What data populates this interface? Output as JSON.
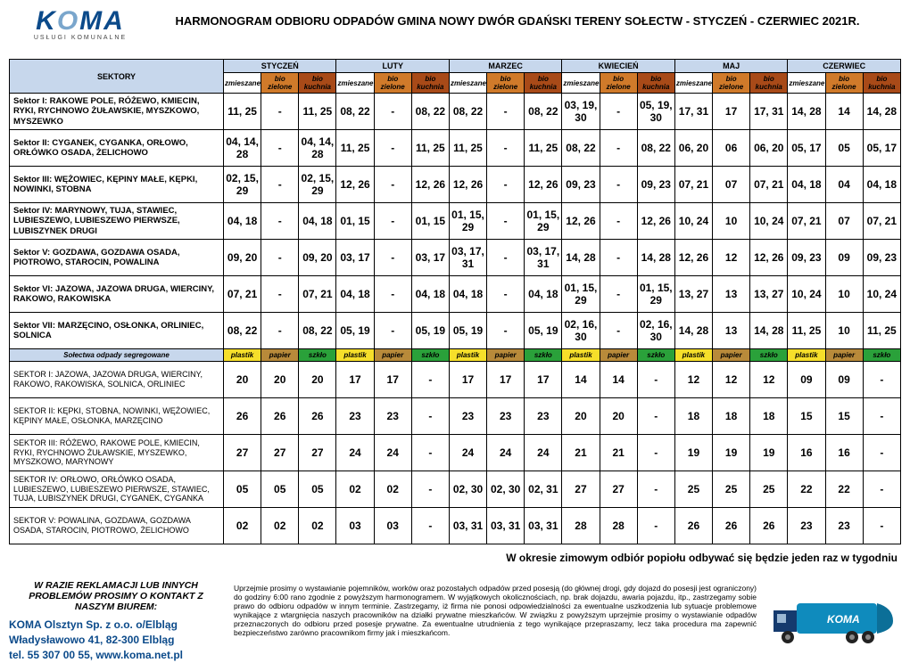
{
  "logo": {
    "text": "KOMA",
    "sub": "USŁUGI KOMUNALNE"
  },
  "title": "HARMONOGRAM ODBIORU ODPADÓW GMINA NOWY DWÓR GDAŃSKI TERENY SOŁECTW - STYCZEŃ - CZERWIEC 2021R.",
  "header": {
    "sektory": "SEKTORY",
    "months": [
      "STYCZEŃ",
      "LUTY",
      "MARZEC",
      "KWIECIEŃ",
      "MAJ",
      "CZERWIEC"
    ],
    "subs": [
      "zmieszane",
      "bio zielone",
      "bio kuchnia"
    ]
  },
  "rows1": [
    {
      "name": "Sektor I: RAKOWE POLE, RÓŻEWO, KMIECIN, RYKI, RYCHNOWO ŻUŁAWSKIE, MYSZKOWO, MYSZEWKO",
      "vals": [
        "11, 25",
        "-",
        "11, 25",
        "08, 22",
        "-",
        "08, 22",
        "08, 22",
        "-",
        "08, 22",
        "03, 19, 30",
        "-",
        "05, 19, 30",
        "17, 31",
        "17",
        "17, 31",
        "14, 28",
        "14",
        "14, 28"
      ]
    },
    {
      "name": "Sektor II: CYGANEK, CYGANKA, ORŁOWO, ORŁÓWKO OSADA, ŻELICHOWO",
      "vals": [
        "04, 14, 28",
        "-",
        "04, 14, 28",
        "11, 25",
        "-",
        "11, 25",
        "11, 25",
        "-",
        "11, 25",
        "08, 22",
        "-",
        "08, 22",
        "06, 20",
        "06",
        "06, 20",
        "05, 17",
        "05",
        "05, 17"
      ]
    },
    {
      "name": "Sektor III: WĘŻOWIEC, KĘPINY MAŁE, KĘPKI, NOWINKI, STOBNA",
      "vals": [
        "02, 15, 29",
        "-",
        "02, 15, 29",
        "12, 26",
        "-",
        "12, 26",
        "12, 26",
        "-",
        "12, 26",
        "09, 23",
        "-",
        "09, 23",
        "07, 21",
        "07",
        "07, 21",
        "04, 18",
        "04",
        "04, 18"
      ]
    },
    {
      "name": "Sektor IV: MARYNOWY, TUJA, STAWIEC, LUBIESZEWO, LUBIESZEWO PIERWSZE, LUBISZYNEK DRUGI",
      "vals": [
        "04, 18",
        "-",
        "04, 18",
        "01, 15",
        "-",
        "01, 15",
        "01, 15, 29",
        "-",
        "01, 15, 29",
        "12, 26",
        "-",
        "12, 26",
        "10, 24",
        "10",
        "10, 24",
        "07, 21",
        "07",
        "07, 21"
      ]
    },
    {
      "name": "Sektor V: GOZDAWA, GOZDAWA OSADA, PIOTROWO, STAROCIN, POWALINA",
      "vals": [
        "09, 20",
        "-",
        "09, 20",
        "03, 17",
        "-",
        "03, 17",
        "03, 17, 31",
        "-",
        "03, 17, 31",
        "14, 28",
        "-",
        "14, 28",
        "12, 26",
        "12",
        "12, 26",
        "09, 23",
        "09",
        "09, 23"
      ]
    },
    {
      "name": "Sektor VI: JAZOWA, JAZOWA DRUGA, WIERCINY, RAKOWO, RAKOWISKA",
      "vals": [
        "07, 21",
        "-",
        "07, 21",
        "04, 18",
        "-",
        "04, 18",
        "04, 18",
        "-",
        "04, 18",
        "01, 15, 29",
        "-",
        "01, 15, 29",
        "13, 27",
        "13",
        "13, 27",
        "10, 24",
        "10",
        "10, 24"
      ]
    },
    {
      "name": "Sektor VII: MARZĘCINO, OSŁONKA, ORLINIEC, SOLNICA",
      "vals": [
        "08, 22",
        "-",
        "08, 22",
        "05, 19",
        "-",
        "05, 19",
        "05, 19",
        "-",
        "05, 19",
        "02, 16, 30",
        "-",
        "02, 16, 30",
        "14, 28",
        "13",
        "14, 28",
        "11, 25",
        "10",
        "11, 25"
      ]
    }
  ],
  "segHeader": {
    "label": "Sołectwa odpady segregowane",
    "cols": [
      "plastik",
      "papier",
      "szkło"
    ]
  },
  "rows2": [
    {
      "name": "SEKTOR I: JAZOWA, JAZOWA DRUGA, WIERCINY, RAKOWO, RAKOWISKA, SOLNICA, ORLINIEC",
      "vals": [
        "20",
        "20",
        "20",
        "17",
        "17",
        "-",
        "17",
        "17",
        "17",
        "14",
        "14",
        "-",
        "12",
        "12",
        "12",
        "09",
        "09",
        "-"
      ]
    },
    {
      "name": "SEKTOR II: KĘPKI, STOBNA, NOWINKI, WĘŻOWIEC, KĘPINY MAŁE, OSŁONKA, MARZĘCINO",
      "vals": [
        "26",
        "26",
        "26",
        "23",
        "23",
        "-",
        "23",
        "23",
        "23",
        "20",
        "20",
        "-",
        "18",
        "18",
        "18",
        "15",
        "15",
        "-"
      ]
    },
    {
      "name": "SEKTOR III: RÓŻEWO, RAKOWE POLE, KMIECIN, RYKI, RYCHNOWO ŻUŁAWSKIE, MYSZEWKO, MYSZKOWO, MARYNOWY",
      "vals": [
        "27",
        "27",
        "27",
        "24",
        "24",
        "-",
        "24",
        "24",
        "24",
        "21",
        "21",
        "-",
        "19",
        "19",
        "19",
        "16",
        "16",
        "-"
      ]
    },
    {
      "name": "SEKTOR IV: ORŁOWO, ORŁÓWKO OSADA, LUBIESZEWO, LUBIESZEWO PIERWSZE, STAWIEC, TUJA, LUBISZYNEK DRUGI, CYGANEK, CYGANKA",
      "vals": [
        "05",
        "05",
        "05",
        "02",
        "02",
        "-",
        "02, 30",
        "02, 30",
        "02, 31",
        "27",
        "27",
        "-",
        "25",
        "25",
        "25",
        "22",
        "22",
        "-"
      ]
    },
    {
      "name": "SEKTOR V: POWALINA, GOZDAWA, GOZDAWA OSADA, STAROCIN, PIOTROWO, ŻELICHOWO",
      "vals": [
        "02",
        "02",
        "02",
        "03",
        "03",
        "-",
        "03, 31",
        "03, 31",
        "03, 31",
        "28",
        "28",
        "-",
        "26",
        "26",
        "26",
        "23",
        "23",
        "-"
      ]
    }
  ],
  "note": "W okresie zimowym odbiór popiołu odbywać się będzie jeden raz w tygodniu",
  "footer": {
    "problem": "W RAZIE REKLAMACJI LUB INNYCH PROBLEMÓW PROSIMY O KONTAKT Z NASZYM BIUREM:",
    "company1": "KOMA Olsztyn Sp. z o.o. o/Elbląg",
    "company2": "Władysławowo 41, 82-300 Elbląg",
    "company3": "tel. 55 307 00 55, www.koma.net.pl",
    "para": "Uprzejmie prosimy o wystawianie pojemników, worków oraz pozostałych odpadów przed posesją (do głównej drogi, gdy dojazd do posesji jest ograniczony) do godziny 6:00 rano zgodnie z powyższym harmonogramem. W wyjątkowych okolicznościach, np. brak dojazdu, awaria pojazdu, itp., zastrzegamy sobie prawo do odbioru odpadów w innym terminie. Zastrzegamy, iż firma nie ponosi odpowiedzialności za ewentualne uszkodzenia lub sytuacje problemowe wynikające z wtargnięcia naszych pracowników na działki prywatne mieszkańców. W związku z powyższym uprzejmie prosimy o wystawianie odpadów przeznaczonych do odbioru przed posesje prywatne. Za ewentualne utrudnienia z tego wynikające przepraszamy, lecz taka procedura ma zapewnić bezpieczeństwo zarówno pracownikom firmy jak i mieszkańcom."
  }
}
